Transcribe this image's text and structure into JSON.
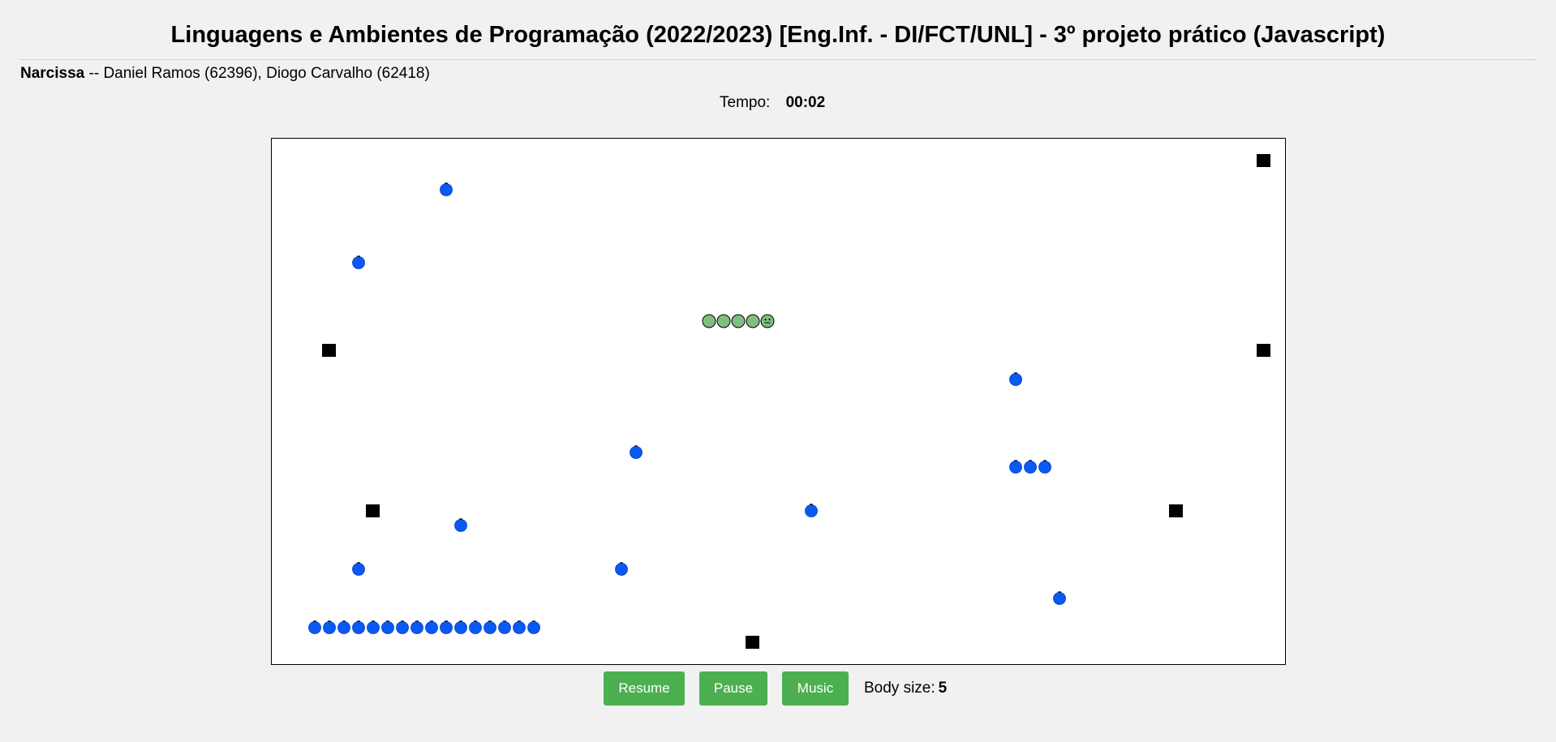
{
  "header": {
    "title": "Linguagens e Ambientes de Programação (2022/2023) [Eng.Inf. - DI/FCT/UNL] - 3º projeto prático (Javascript)",
    "game_name": "Narcissa",
    "authors_text": "-- Daniel Ramos (62396), Diogo Carvalho (62418)"
  },
  "timer": {
    "label": "Tempo:",
    "value": "00:02"
  },
  "controls": {
    "resume_label": "Resume",
    "pause_label": "Pause",
    "music_label": "Music",
    "body_size_label": "Body size:",
    "body_size_value": "5"
  },
  "colors": {
    "button": "#4caf50",
    "berry": "#0a59f5",
    "snake": "#7fbf7f",
    "wall": "#000000"
  },
  "board": {
    "cols": 70,
    "rows": 36,
    "snake": {
      "direction": "right",
      "segments": [
        [
          29,
          12
        ],
        [
          30,
          12
        ],
        [
          31,
          12
        ],
        [
          32,
          12
        ],
        [
          33,
          12
        ]
      ]
    },
    "berries": [
      [
        11,
        3
      ],
      [
        5,
        8
      ],
      [
        24,
        21
      ],
      [
        36,
        25
      ],
      [
        12,
        26
      ],
      [
        5,
        29
      ],
      [
        23,
        29
      ],
      [
        50,
        16
      ],
      [
        50,
        22
      ],
      [
        51,
        22
      ],
      [
        52,
        22
      ],
      [
        53,
        31
      ],
      [
        2,
        33
      ],
      [
        3,
        33
      ],
      [
        4,
        33
      ],
      [
        5,
        33
      ],
      [
        6,
        33
      ],
      [
        7,
        33
      ],
      [
        8,
        33
      ],
      [
        9,
        33
      ],
      [
        10,
        33
      ],
      [
        11,
        33
      ],
      [
        12,
        33
      ],
      [
        13,
        33
      ],
      [
        14,
        33
      ],
      [
        15,
        33
      ],
      [
        16,
        33
      ],
      [
        17,
        33
      ]
    ],
    "walls": [
      [
        67,
        1
      ],
      [
        3,
        14
      ],
      [
        67,
        14
      ],
      [
        6,
        25
      ],
      [
        61,
        25
      ],
      [
        32,
        34
      ]
    ]
  }
}
